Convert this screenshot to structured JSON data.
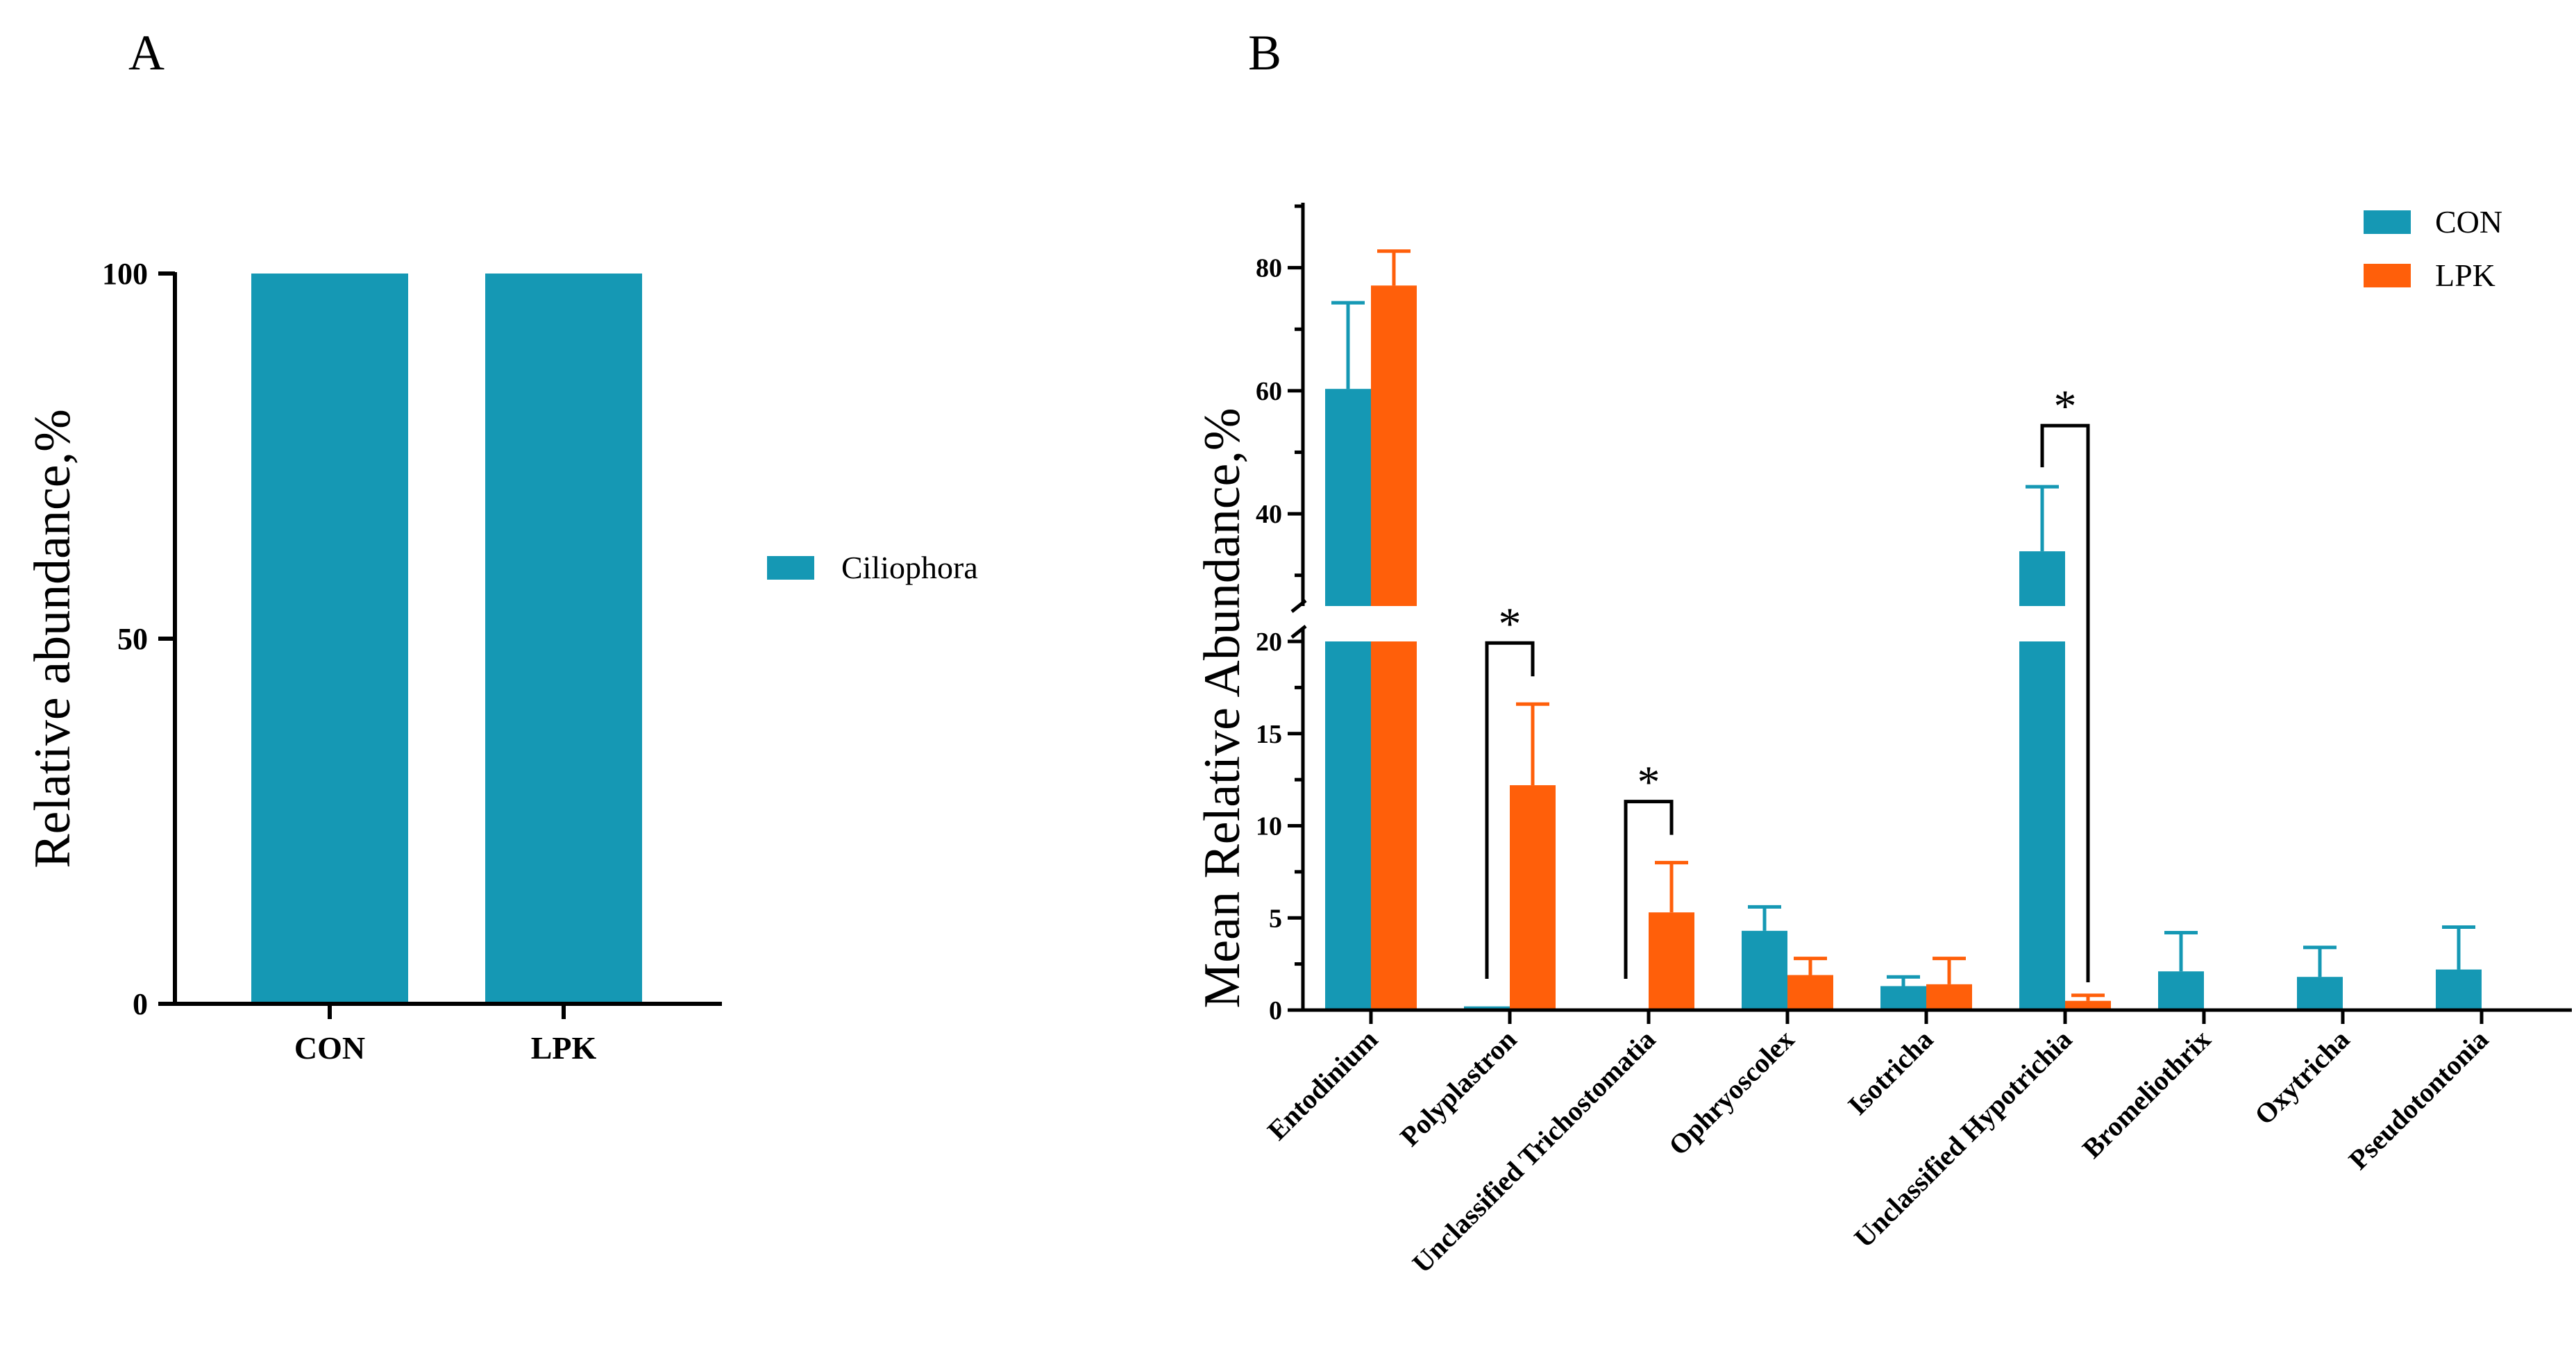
{
  "colors": {
    "CON": "#1598B4",
    "LPK": "#FF5F0A",
    "axis": "#000000"
  },
  "chart_data": [
    {
      "panel": "A",
      "type": "bar",
      "stacked": true,
      "categories": [
        "CON",
        "LPK"
      ],
      "series": [
        {
          "name": "Ciliophora",
          "values": [
            100,
            100
          ]
        }
      ],
      "ylabel": "Relative abundance,%",
      "ylim": [
        0,
        100
      ],
      "yticks": [
        0,
        50,
        100
      ],
      "legend": "right"
    },
    {
      "panel": "B",
      "type": "bar",
      "categories": [
        "Entodinium",
        "Polyplastron",
        "Unclassified Trichostomatia",
        "Ophryoscolex",
        "Isotricha",
        "Unclassified Hypotrichia",
        "Bromeliothrix",
        "Oxytricha",
        "Pseudotontonia"
      ],
      "series": [
        {
          "name": "CON",
          "values": [
            60.3,
            0.2,
            0,
            4.3,
            1.3,
            33.9,
            2.1,
            1.8,
            2.2
          ],
          "errors": [
            14.0,
            0,
            0,
            1.3,
            0.5,
            10.5,
            2.1,
            1.6,
            2.3
          ]
        },
        {
          "name": "LPK",
          "values": [
            77.1,
            12.2,
            5.3,
            1.9,
            1.4,
            0.5,
            0,
            0,
            0
          ],
          "errors": [
            5.6,
            4.4,
            2.7,
            0.9,
            1.4,
            0.3,
            0,
            0,
            0
          ]
        }
      ],
      "ylabel": "Mean Relative Abundance,%",
      "ylim": [
        0,
        90
      ],
      "axis_break": [
        20,
        25
      ],
      "yticks_lower": [
        0,
        5,
        10,
        15,
        20
      ],
      "yticks_upper": [
        40,
        60,
        80
      ],
      "significance": [
        {
          "category": "Polyplastron",
          "label": "*"
        },
        {
          "category": "Unclassified Trichostomatia",
          "label": "*"
        },
        {
          "category": "Unclassified Hypotrichia",
          "label": "*"
        }
      ],
      "legend": "top-right"
    }
  ]
}
